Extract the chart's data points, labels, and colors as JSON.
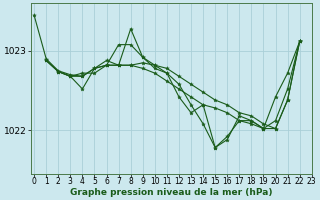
{
  "bg_color": "#cce8ee",
  "grid_color": "#aacfd8",
  "line_color": "#1a5c1a",
  "xlabel": "Graphe pression niveau de la mer (hPa)",
  "xlabel_fontsize": 6.5,
  "yticks": [
    1022,
    1023
  ],
  "xlim": [
    -0.3,
    23
  ],
  "ylim": [
    1021.45,
    1023.6
  ],
  "series": [
    {
      "x": [
        0,
        1,
        2,
        3,
        4,
        5,
        6,
        7,
        8,
        9,
        10,
        11,
        12,
        13,
        14,
        15,
        16,
        17,
        18,
        19,
        20,
        21,
        22
      ],
      "y": [
        1023.45,
        1022.9,
        1022.75,
        1022.7,
        1022.68,
        1022.78,
        1022.82,
        1022.82,
        1022.82,
        1022.85,
        1022.82,
        1022.78,
        1022.68,
        1022.58,
        1022.48,
        1022.38,
        1022.32,
        1022.22,
        1022.18,
        1022.08,
        1022.02,
        1022.38,
        1023.12
      ]
    },
    {
      "x": [
        1,
        2,
        3,
        4,
        5,
        6,
        7,
        8,
        9,
        10,
        11,
        12,
        13,
        14,
        15,
        16,
        17,
        18,
        19,
        20,
        21,
        22
      ],
      "y": [
        1022.88,
        1022.74,
        1022.68,
        1022.52,
        1022.78,
        1022.82,
        1023.08,
        1023.08,
        1022.92,
        1022.82,
        1022.72,
        1022.42,
        1022.22,
        1022.32,
        1021.78,
        1021.88,
        1022.18,
        1022.12,
        1022.02,
        1022.42,
        1022.72,
        1023.12
      ]
    },
    {
      "x": [
        1,
        2,
        3,
        4,
        5,
        6,
        7,
        8,
        9,
        10,
        11,
        12,
        13,
        14,
        15,
        16,
        17,
        18,
        19,
        20,
        21,
        22
      ],
      "y": [
        1022.88,
        1022.74,
        1022.68,
        1022.72,
        1022.72,
        1022.82,
        1022.82,
        1023.28,
        1022.92,
        1022.78,
        1022.72,
        1022.58,
        1022.32,
        1022.08,
        1021.78,
        1021.92,
        1022.12,
        1022.12,
        1022.02,
        1022.12,
        1022.52,
        1023.12
      ]
    },
    {
      "x": [
        1,
        2,
        3,
        4,
        5,
        6,
        7,
        8,
        9,
        10,
        11,
        12,
        13,
        14,
        15,
        16,
        17,
        18,
        19,
        20,
        21,
        22
      ],
      "y": [
        1022.88,
        1022.74,
        1022.68,
        1022.68,
        1022.78,
        1022.88,
        1022.82,
        1022.82,
        1022.78,
        1022.72,
        1022.62,
        1022.52,
        1022.42,
        1022.32,
        1022.28,
        1022.22,
        1022.12,
        1022.08,
        1022.02,
        1022.02,
        1022.38,
        1023.12
      ]
    }
  ],
  "xticks": [
    0,
    1,
    2,
    3,
    4,
    5,
    6,
    7,
    8,
    9,
    10,
    11,
    12,
    13,
    14,
    15,
    16,
    17,
    18,
    19,
    20,
    21,
    22,
    23
  ],
  "tick_fontsize": 5.5
}
